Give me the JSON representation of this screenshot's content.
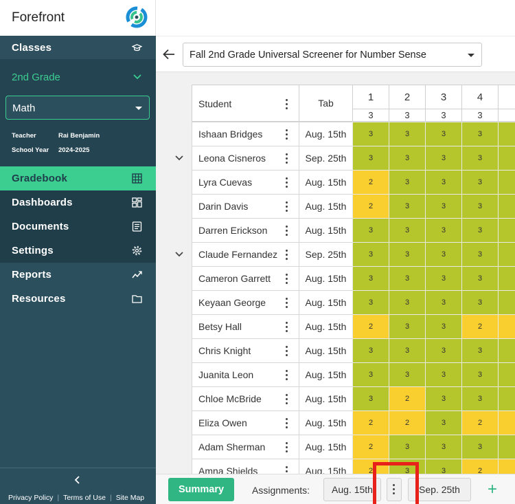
{
  "brand": {
    "name": "Forefront"
  },
  "sidebar": {
    "classes_label": "Classes",
    "grade_label": "2nd Grade",
    "subject": "Math",
    "teacher_label": "Teacher",
    "teacher_value": "Rai Benjamin",
    "year_label": "School Year",
    "year_value": "2024-2025",
    "items": [
      {
        "label": "Gradebook",
        "icon": "grid-icon",
        "active": true
      },
      {
        "label": "Dashboards",
        "icon": "dashboard-icon"
      },
      {
        "label": "Documents",
        "icon": "document-icon"
      },
      {
        "label": "Settings",
        "icon": "gear-icon"
      },
      {
        "label": "Reports",
        "icon": "trend-icon"
      },
      {
        "label": "Resources",
        "icon": "folder-icon"
      }
    ],
    "footer": {
      "privacy": "Privacy Policy",
      "terms": "Terms of Use",
      "sitemap": "Site Map"
    }
  },
  "topbar": {
    "assessment": "Fall 2nd Grade Universal Screener for Number Sense"
  },
  "gradebook": {
    "student_header": "Student",
    "tab_header": "Tab",
    "columns": [
      {
        "num": "1",
        "max": "3"
      },
      {
        "num": "2",
        "max": "3"
      },
      {
        "num": "3",
        "max": "3"
      },
      {
        "num": "4",
        "max": "3"
      }
    ],
    "rows": [
      {
        "name": "Ishaan Bridges",
        "tab": "Aug. 15th",
        "expand": false,
        "scores": [
          "3",
          "3",
          "3",
          "3"
        ]
      },
      {
        "name": "Leona Cisneros",
        "tab": "Sep. 25th",
        "expand": true,
        "scores": [
          "3",
          "3",
          "3",
          "3"
        ]
      },
      {
        "name": "Lyra Cuevas",
        "tab": "Aug. 15th",
        "expand": false,
        "scores": [
          "2",
          "3",
          "3",
          "3"
        ]
      },
      {
        "name": "Darin Davis",
        "tab": "Aug. 15th",
        "expand": false,
        "scores": [
          "2",
          "3",
          "3",
          "3"
        ]
      },
      {
        "name": "Darren Erickson",
        "tab": "Aug. 15th",
        "expand": false,
        "scores": [
          "3",
          "3",
          "3",
          "3"
        ]
      },
      {
        "name": "Claude Fernandez",
        "tab": "Sep. 25th",
        "expand": true,
        "scores": [
          "3",
          "3",
          "3",
          "3"
        ]
      },
      {
        "name": "Cameron Garrett",
        "tab": "Aug. 15th",
        "expand": false,
        "scores": [
          "3",
          "3",
          "3",
          "3"
        ]
      },
      {
        "name": "Keyaan George",
        "tab": "Aug. 15th",
        "expand": false,
        "scores": [
          "3",
          "3",
          "3",
          "3"
        ]
      },
      {
        "name": "Betsy Hall",
        "tab": "Aug. 15th",
        "expand": false,
        "scores": [
          "2",
          "3",
          "3",
          "2"
        ]
      },
      {
        "name": "Chris Knight",
        "tab": "Aug. 15th",
        "expand": false,
        "scores": [
          "3",
          "3",
          "3",
          "3"
        ]
      },
      {
        "name": "Juanita Leon",
        "tab": "Aug. 15th",
        "expand": false,
        "scores": [
          "3",
          "3",
          "3",
          "3"
        ]
      },
      {
        "name": "Chloe McBride",
        "tab": "Aug. 15th",
        "expand": false,
        "scores": [
          "3",
          "2",
          "3",
          "3"
        ]
      },
      {
        "name": "Eliza Owen",
        "tab": "Aug. 15th",
        "expand": false,
        "scores": [
          "2",
          "2",
          "3",
          "2"
        ]
      },
      {
        "name": "Adam Sherman",
        "tab": "Aug. 15th",
        "expand": false,
        "scores": [
          "2",
          "3",
          "3",
          "3"
        ]
      },
      {
        "name": "Amna Shields",
        "tab": "Aug. 15th",
        "expand": false,
        "scores": [
          "2",
          "3",
          "3",
          "2"
        ]
      }
    ],
    "colors": {
      "full": "#b5c62c",
      "partial": "#f8cf2e"
    }
  },
  "bottombar": {
    "summary": "Summary",
    "assignments_label": "Assignments:",
    "tabs": [
      "Aug. 15th",
      "Sep. 25th"
    ],
    "add": "+"
  }
}
